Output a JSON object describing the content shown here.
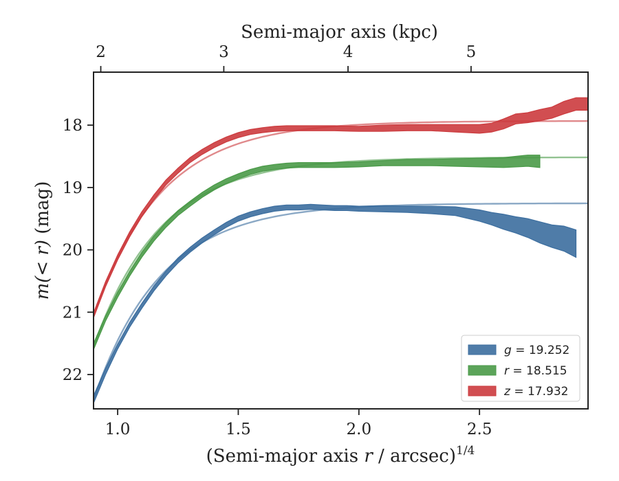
{
  "chart_data": {
    "type": "line",
    "xlabel": "(Semi-major axis r / arcsec)^1/4",
    "xlabel_parts": {
      "before": "(Semi-major axis ",
      "var": "r",
      "after": " / arcsec)",
      "sup": "1/4"
    },
    "ylabel": "m(< r) (mag)",
    "ylabel_parts": {
      "before": "m(< r)",
      "after": " (mag)"
    },
    "top_xlabel": "Semi-major axis (kpc)",
    "xlim": [
      0.9,
      2.95
    ],
    "ylim": [
      22.55,
      17.15
    ],
    "y_inverted": true,
    "x_ticks": [
      1.0,
      1.5,
      2.0,
      2.5
    ],
    "x_tick_labels": [
      "1.0",
      "1.5",
      "2.0",
      "2.5"
    ],
    "y_ticks": [
      18,
      19,
      20,
      21,
      22
    ],
    "y_tick_labels": [
      "18",
      "19",
      "20",
      "21",
      "22"
    ],
    "top_ticks": [
      {
        "label": "2",
        "x": 0.93
      },
      {
        "label": "3",
        "x": 1.44
      },
      {
        "label": "4",
        "x": 1.955
      },
      {
        "label": "5",
        "x": 2.465
      }
    ],
    "legend_position": "lower-right",
    "grid": false,
    "series": [
      {
        "name": "g = 19.252",
        "band": "g",
        "value": "19.252",
        "color": "#3c6e9f",
        "model_asymptote": 19.252,
        "x": [
          0.9,
          0.95,
          1.0,
          1.05,
          1.1,
          1.15,
          1.2,
          1.25,
          1.3,
          1.35,
          1.4,
          1.45,
          1.5,
          1.55,
          1.6,
          1.65,
          1.7,
          1.75,
          1.8,
          1.85,
          1.9,
          1.95,
          2.0,
          2.1,
          2.2,
          2.3,
          2.4,
          2.5,
          2.55,
          2.6,
          2.65,
          2.7,
          2.75,
          2.8,
          2.85,
          2.9
        ],
        "y": [
          22.4,
          21.95,
          21.55,
          21.2,
          20.9,
          20.62,
          20.38,
          20.17,
          20.0,
          19.85,
          19.72,
          19.6,
          19.5,
          19.43,
          19.38,
          19.34,
          19.32,
          19.32,
          19.31,
          19.32,
          19.33,
          19.33,
          19.34,
          19.34,
          19.35,
          19.36,
          19.38,
          19.45,
          19.5,
          19.55,
          19.6,
          19.65,
          19.72,
          19.78,
          19.82,
          19.9
        ],
        "band_width": [
          0.06,
          0.05,
          0.04,
          0.04,
          0.04,
          0.04,
          0.04,
          0.04,
          0.04,
          0.04,
          0.04,
          0.04,
          0.04,
          0.04,
          0.04,
          0.04,
          0.04,
          0.04,
          0.04,
          0.04,
          0.04,
          0.04,
          0.04,
          0.05,
          0.05,
          0.06,
          0.07,
          0.09,
          0.1,
          0.12,
          0.13,
          0.15,
          0.17,
          0.18,
          0.2,
          0.22
        ]
      },
      {
        "name": "r = 18.515",
        "band": "r",
        "value": "18.515",
        "color": "#4a9a48",
        "model_asymptote": 18.515,
        "x": [
          0.9,
          0.95,
          1.0,
          1.05,
          1.1,
          1.15,
          1.2,
          1.25,
          1.3,
          1.35,
          1.4,
          1.45,
          1.5,
          1.55,
          1.6,
          1.65,
          1.7,
          1.75,
          1.8,
          1.85,
          1.9,
          2.0,
          2.1,
          2.2,
          2.3,
          2.4,
          2.5,
          2.6,
          2.7,
          2.75
        ],
        "y": [
          21.55,
          21.1,
          20.72,
          20.38,
          20.08,
          19.82,
          19.6,
          19.41,
          19.26,
          19.12,
          19.0,
          18.9,
          18.82,
          18.75,
          18.7,
          18.67,
          18.65,
          18.64,
          18.64,
          18.64,
          18.64,
          18.63,
          18.61,
          18.6,
          18.6,
          18.6,
          18.6,
          18.6,
          18.57,
          18.58
        ],
        "band_width": [
          0.05,
          0.04,
          0.04,
          0.04,
          0.04,
          0.04,
          0.04,
          0.04,
          0.04,
          0.04,
          0.04,
          0.04,
          0.04,
          0.04,
          0.04,
          0.04,
          0.04,
          0.04,
          0.04,
          0.04,
          0.04,
          0.04,
          0.04,
          0.05,
          0.05,
          0.06,
          0.07,
          0.08,
          0.09,
          0.1
        ]
      },
      {
        "name": "z = 17.932",
        "band": "z",
        "value": "17.932",
        "color": "#cc3b3e",
        "model_asymptote": 17.932,
        "x": [
          0.9,
          0.95,
          1.0,
          1.05,
          1.1,
          1.15,
          1.2,
          1.25,
          1.3,
          1.35,
          1.4,
          1.45,
          1.5,
          1.55,
          1.6,
          1.65,
          1.7,
          1.75,
          1.8,
          1.85,
          1.9,
          2.0,
          2.1,
          2.2,
          2.3,
          2.4,
          2.5,
          2.55,
          2.6,
          2.65,
          2.7,
          2.75,
          2.8,
          2.85,
          2.9,
          2.95
        ],
        "y": [
          21.05,
          20.55,
          20.12,
          19.75,
          19.43,
          19.16,
          18.92,
          18.73,
          18.56,
          18.43,
          18.32,
          18.23,
          18.16,
          18.11,
          18.08,
          18.06,
          18.05,
          18.05,
          18.05,
          18.05,
          18.05,
          18.06,
          18.05,
          18.04,
          18.04,
          18.05,
          18.06,
          18.04,
          17.98,
          17.9,
          17.88,
          17.84,
          17.8,
          17.72,
          17.66,
          17.66
        ],
        "band_width": [
          0.04,
          0.04,
          0.04,
          0.04,
          0.04,
          0.04,
          0.04,
          0.04,
          0.04,
          0.04,
          0.04,
          0.04,
          0.04,
          0.04,
          0.04,
          0.04,
          0.04,
          0.04,
          0.04,
          0.04,
          0.04,
          0.04,
          0.05,
          0.05,
          0.05,
          0.06,
          0.07,
          0.07,
          0.08,
          0.08,
          0.08,
          0.09,
          0.09,
          0.1,
          0.1,
          0.1
        ]
      }
    ]
  }
}
